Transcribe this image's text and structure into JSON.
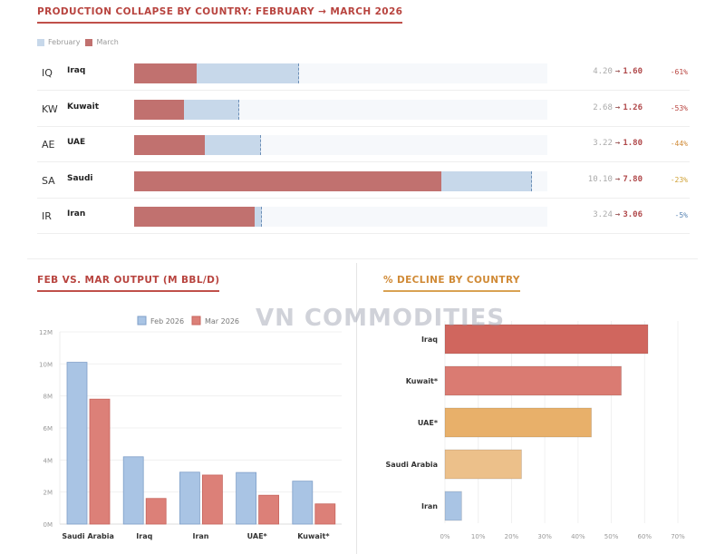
{
  "top": {
    "title": "PRODUCTION COLLAPSE BY COUNTRY: FEBRUARY → MARCH 2026",
    "legend": [
      "February",
      "March"
    ],
    "arrow": "→",
    "scale_max": 10.5,
    "rows": [
      {
        "code": "IQ",
        "name": "Iraq",
        "feb": 4.2,
        "mar": 1.6,
        "feb_label": "4.20",
        "mar_label": "1.60",
        "pct": "-61%",
        "pct_color": "#b8443f"
      },
      {
        "code": "KW",
        "name": "Kuwait",
        "feb": 2.68,
        "mar": 1.26,
        "feb_label": "2.68",
        "mar_label": "1.26",
        "pct": "-53%",
        "pct_color": "#b8443f"
      },
      {
        "code": "AE",
        "name": "UAE",
        "feb": 3.22,
        "mar": 1.8,
        "feb_label": "3.22",
        "mar_label": "1.80",
        "pct": "-44%",
        "pct_color": "#d08a36"
      },
      {
        "code": "SA",
        "name": "Saudi",
        "feb": 10.1,
        "mar": 7.8,
        "feb_label": "10.10",
        "mar_label": "7.80",
        "pct": "-23%",
        "pct_color": "#d0a236"
      },
      {
        "code": "IR",
        "name": "Iran",
        "feb": 3.24,
        "mar": 3.06,
        "feb_label": "3.24",
        "mar_label": "3.06",
        "pct": "-5%",
        "pct_color": "#5a86b5"
      }
    ]
  },
  "watermark": "VN COMMODITIES",
  "chart_data": [
    {
      "type": "bar",
      "title": "FEB VS. MAR OUTPUT (M BBL/D)",
      "categories": [
        "Saudi Arabia",
        "Iraq",
        "Iran",
        "UAE*",
        "Kuwait*"
      ],
      "series": [
        {
          "name": "Feb 2026",
          "values": [
            10.1,
            4.2,
            3.24,
            3.22,
            2.68
          ],
          "color": "#a9c4e4"
        },
        {
          "name": "Mar 2026",
          "values": [
            7.8,
            1.6,
            3.06,
            1.8,
            1.26
          ],
          "color": "#dc8078"
        }
      ],
      "ylim": [
        0,
        12
      ],
      "yticks": [
        "0M",
        "2M",
        "4M",
        "6M",
        "8M",
        "10M",
        "12M"
      ],
      "grid": true,
      "legend": "top"
    },
    {
      "type": "bar",
      "orientation": "horizontal",
      "title": "% DECLINE BY COUNTRY",
      "categories": [
        "Iraq",
        "Kuwait*",
        "UAE*",
        "Saudi Arabia",
        "Iran"
      ],
      "values": [
        61,
        53,
        44,
        23,
        5
      ],
      "colors": [
        "#d0665e",
        "#da7b72",
        "#e8b06a",
        "#ecc08a",
        "#a9c4e4"
      ],
      "xlim": [
        0,
        70
      ],
      "xticks": [
        "0%",
        "10%",
        "20%",
        "30%",
        "40%",
        "50%",
        "60%",
        "70%"
      ],
      "grid": true
    }
  ]
}
